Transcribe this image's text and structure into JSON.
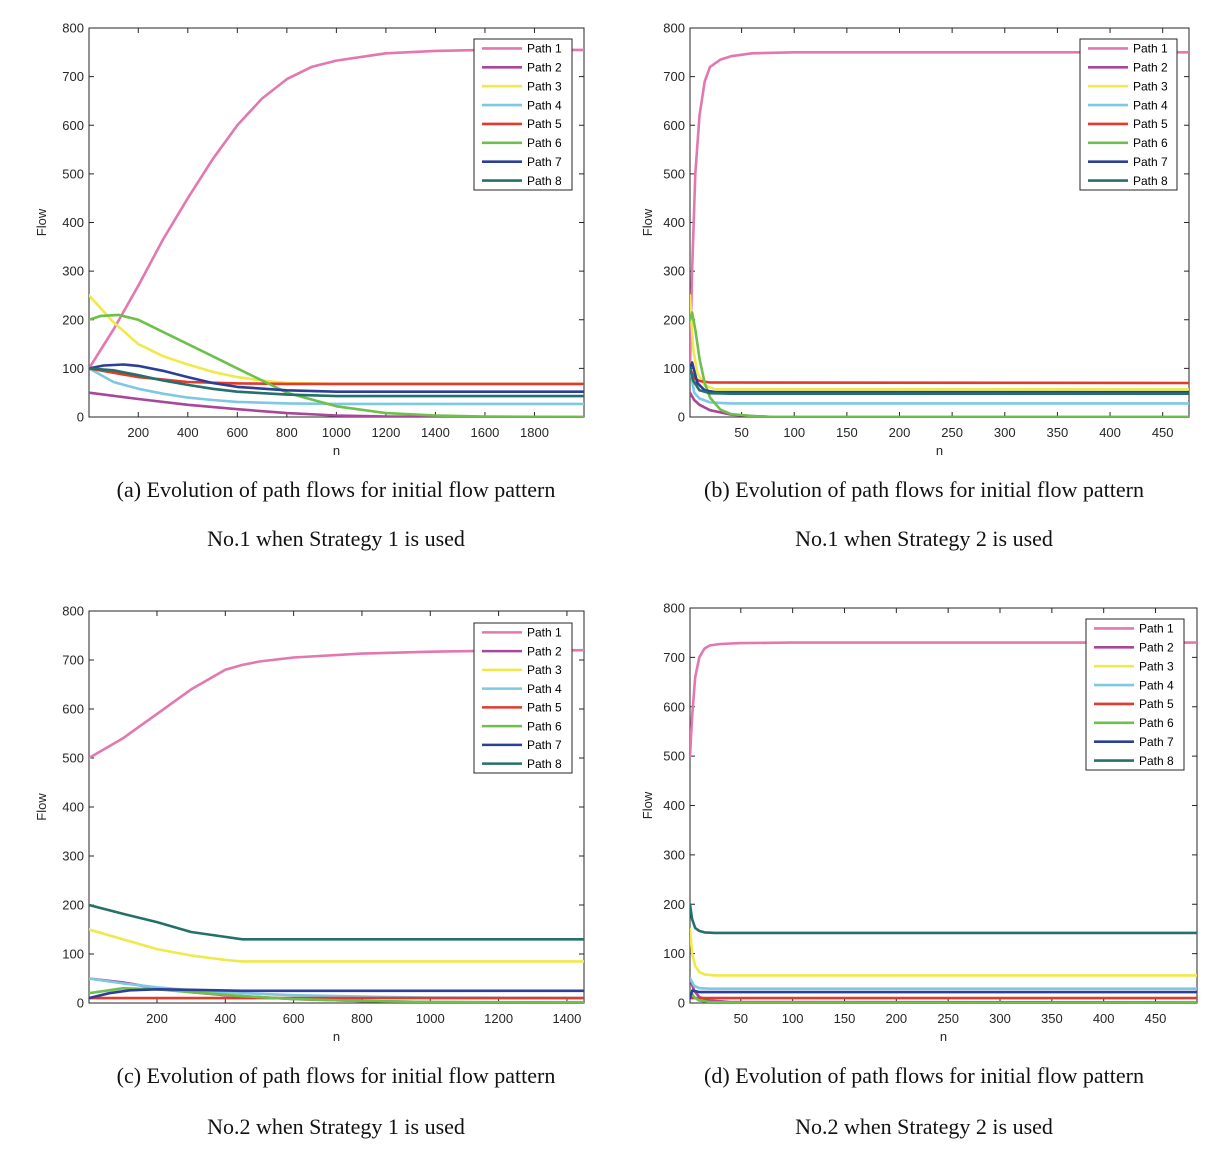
{
  "chart_data": [
    {
      "type": "line",
      "panel": "a",
      "xlabel": "n",
      "ylabel": "Flow",
      "xlim": [
        1,
        2000
      ],
      "ylim": [
        0,
        800
      ],
      "xticks": [
        200,
        400,
        600,
        800,
        1000,
        1200,
        1400,
        1600,
        1800
      ],
      "yticks": [
        0,
        100,
        200,
        300,
        400,
        500,
        600,
        700,
        800
      ],
      "caption": [
        "(a) Evolution of path flows for initial flow pattern",
        "No.1 when Strategy 1 is used"
      ],
      "series": [
        {
          "name": "Path 1",
          "color": "#e377b0",
          "x": [
            1,
            100,
            200,
            300,
            400,
            500,
            600,
            700,
            800,
            900,
            1000,
            1200,
            1400,
            1600,
            2000
          ],
          "y": [
            100,
            180,
            270,
            365,
            450,
            530,
            600,
            655,
            695,
            720,
            733,
            748,
            753,
            755,
            755
          ]
        },
        {
          "name": "Path 2",
          "color": "#a8479a",
          "x": [
            1,
            200,
            400,
            600,
            800,
            1000,
            1200,
            1600,
            2000
          ],
          "y": [
            50,
            37,
            25,
            16,
            8,
            3,
            1,
            0,
            0
          ]
        },
        {
          "name": "Path 3",
          "color": "#f0e94a",
          "x": [
            1,
            100,
            200,
            300,
            400,
            500,
            600,
            700,
            800,
            1000,
            2000
          ],
          "y": [
            250,
            195,
            150,
            125,
            108,
            93,
            82,
            75,
            70,
            68,
            68
          ]
        },
        {
          "name": "Path 4",
          "color": "#7ec8e3",
          "x": [
            1,
            100,
            200,
            300,
            400,
            500,
            600,
            800,
            1000,
            2000
          ],
          "y": [
            100,
            72,
            58,
            48,
            40,
            35,
            31,
            28,
            27,
            27
          ]
        },
        {
          "name": "Path 5",
          "color": "#e23a2c",
          "x": [
            1,
            200,
            400,
            600,
            800,
            1000,
            2000
          ],
          "y": [
            100,
            82,
            72,
            69,
            68,
            68,
            68
          ]
        },
        {
          "name": "Path 6",
          "color": "#6fbf4b",
          "x": [
            1,
            50,
            120,
            200,
            300,
            400,
            500,
            600,
            700,
            800,
            1000,
            1200,
            1400,
            1600,
            2000
          ],
          "y": [
            200,
            208,
            210,
            200,
            175,
            150,
            125,
            100,
            75,
            50,
            22,
            8,
            3,
            1,
            0
          ]
        },
        {
          "name": "Path 7",
          "color": "#2b3f99",
          "x": [
            1,
            60,
            140,
            200,
            300,
            400,
            500,
            600,
            800,
            1000,
            2000
          ],
          "y": [
            100,
            106,
            108,
            105,
            95,
            82,
            70,
            62,
            55,
            52,
            52
          ]
        },
        {
          "name": "Path 8",
          "color": "#25706a",
          "x": [
            1,
            100,
            200,
            300,
            400,
            500,
            600,
            800,
            1000,
            2000
          ],
          "y": [
            100,
            96,
            86,
            75,
            66,
            58,
            52,
            46,
            43,
            43
          ]
        }
      ]
    },
    {
      "type": "line",
      "panel": "b",
      "xlabel": "n",
      "ylabel": "Flow",
      "xlim": [
        1,
        475
      ],
      "ylim": [
        0,
        800
      ],
      "xticks": [
        50,
        100,
        150,
        200,
        250,
        300,
        350,
        400,
        450
      ],
      "yticks": [
        0,
        100,
        200,
        300,
        400,
        500,
        600,
        700,
        800
      ],
      "caption": [
        "(b) Evolution of path flows for initial flow pattern",
        "No.1 when Strategy 2 is used"
      ],
      "series": [
        {
          "name": "Path 1",
          "color": "#e377b0",
          "x": [
            1,
            3,
            6,
            10,
            15,
            20,
            30,
            40,
            60,
            100,
            475
          ],
          "y": [
            100,
            300,
            500,
            620,
            690,
            720,
            735,
            742,
            748,
            750,
            750
          ]
        },
        {
          "name": "Path 2",
          "color": "#a8479a",
          "x": [
            1,
            5,
            10,
            20,
            40,
            60,
            80,
            475
          ],
          "y": [
            50,
            35,
            25,
            14,
            5,
            2,
            0,
            0
          ]
        },
        {
          "name": "Path 3",
          "color": "#f0e94a",
          "x": [
            1,
            4,
            8,
            15,
            25,
            475
          ],
          "y": [
            250,
            140,
            90,
            65,
            57,
            57
          ]
        },
        {
          "name": "Path 4",
          "color": "#7ec8e3",
          "x": [
            1,
            5,
            10,
            20,
            40,
            475
          ],
          "y": [
            100,
            50,
            38,
            30,
            28,
            28
          ]
        },
        {
          "name": "Path 5",
          "color": "#e23a2c",
          "x": [
            1,
            5,
            10,
            20,
            475
          ],
          "y": [
            100,
            80,
            74,
            71,
            70
          ]
        },
        {
          "name": "Path 6",
          "color": "#6fbf4b",
          "x": [
            1,
            3,
            6,
            10,
            15,
            20,
            30,
            40,
            60,
            80,
            475
          ],
          "y": [
            200,
            215,
            180,
            120,
            70,
            40,
            15,
            6,
            2,
            0,
            0
          ]
        },
        {
          "name": "Path 7",
          "color": "#2b3f99",
          "x": [
            1,
            3,
            8,
            15,
            25,
            475
          ],
          "y": [
            100,
            112,
            70,
            55,
            51,
            51
          ]
        },
        {
          "name": "Path 8",
          "color": "#25706a",
          "x": [
            1,
            4,
            10,
            20,
            40,
            475
          ],
          "y": [
            100,
            75,
            55,
            49,
            48,
            48
          ]
        }
      ]
    },
    {
      "type": "line",
      "panel": "c",
      "xlabel": "n",
      "ylabel": "Flow",
      "xlim": [
        1,
        1450
      ],
      "ylim": [
        0,
        800
      ],
      "xticks": [
        200,
        400,
        600,
        800,
        1000,
        1200,
        1400
      ],
      "yticks": [
        0,
        100,
        200,
        300,
        400,
        500,
        600,
        700,
        800
      ],
      "caption": [
        "(c) Evolution of path flows for initial flow pattern",
        "No.2 when Strategy 1 is used"
      ],
      "series": [
        {
          "name": "Path 1",
          "color": "#e377b0",
          "x": [
            1,
            100,
            200,
            300,
            400,
            450,
            500,
            600,
            800,
            1000,
            1200,
            1450
          ],
          "y": [
            500,
            540,
            590,
            640,
            680,
            690,
            697,
            705,
            713,
            717,
            719,
            720
          ]
        },
        {
          "name": "Path 2",
          "color": "#a8479a",
          "x": [
            1,
            100,
            200,
            300,
            400,
            600,
            800,
            1000,
            1450
          ],
          "y": [
            50,
            42,
            30,
            22,
            16,
            8,
            4,
            2,
            1
          ]
        },
        {
          "name": "Path 3",
          "color": "#f0e94a",
          "x": [
            1,
            100,
            200,
            300,
            400,
            450,
            600,
            1000,
            1450
          ],
          "y": [
            150,
            130,
            110,
            97,
            88,
            85,
            85,
            85,
            85
          ]
        },
        {
          "name": "Path 4",
          "color": "#7ec8e3",
          "x": [
            1,
            100,
            200,
            300,
            450,
            600,
            800,
            1000,
            1450
          ],
          "y": [
            50,
            40,
            32,
            26,
            20,
            16,
            13,
            11,
            10
          ]
        },
        {
          "name": "Path 5",
          "color": "#e23a2c",
          "x": [
            1,
            200,
            400,
            600,
            1000,
            1450
          ],
          "y": [
            10,
            10,
            10,
            10,
            10,
            10
          ]
        },
        {
          "name": "Path 6",
          "color": "#6fbf4b",
          "x": [
            1,
            100,
            200,
            300,
            450,
            600,
            800,
            1000,
            1450
          ],
          "y": [
            20,
            30,
            28,
            22,
            14,
            8,
            4,
            2,
            1
          ]
        },
        {
          "name": "Path 7",
          "color": "#2b3f99",
          "x": [
            1,
            60,
            120,
            200,
            300,
            450,
            600,
            1000,
            1450
          ],
          "y": [
            10,
            20,
            26,
            28,
            27,
            25,
            25,
            25,
            25
          ]
        },
        {
          "name": "Path 8",
          "color": "#25706a",
          "x": [
            1,
            100,
            200,
            300,
            400,
            450,
            600,
            1000,
            1450
          ],
          "y": [
            200,
            182,
            165,
            145,
            135,
            130,
            130,
            130,
            130
          ]
        }
      ]
    },
    {
      "type": "line",
      "panel": "d",
      "xlabel": "n",
      "ylabel": "Flow",
      "xlim": [
        1,
        490
      ],
      "ylim": [
        0,
        800
      ],
      "xticks": [
        50,
        100,
        150,
        200,
        250,
        300,
        350,
        400,
        450
      ],
      "yticks": [
        0,
        100,
        200,
        300,
        400,
        500,
        600,
        700,
        800
      ],
      "caption": [
        "(d) Evolution of path flows for initial flow pattern",
        "No.2 when Strategy 2 is used"
      ],
      "series": [
        {
          "name": "Path 1",
          "color": "#e377b0",
          "x": [
            1,
            3,
            6,
            10,
            15,
            20,
            30,
            50,
            100,
            490
          ],
          "y": [
            500,
            580,
            660,
            700,
            718,
            724,
            727,
            729,
            730,
            730
          ]
        },
        {
          "name": "Path 2",
          "color": "#a8479a",
          "x": [
            1,
            5,
            10,
            20,
            40,
            490
          ],
          "y": [
            50,
            25,
            12,
            5,
            2,
            1
          ]
        },
        {
          "name": "Path 3",
          "color": "#f0e94a",
          "x": [
            1,
            3,
            6,
            10,
            15,
            25,
            490
          ],
          "y": [
            150,
            100,
            75,
            63,
            58,
            56,
            56
          ]
        },
        {
          "name": "Path 4",
          "color": "#7ec8e3",
          "x": [
            1,
            5,
            10,
            20,
            490
          ],
          "y": [
            50,
            35,
            30,
            29,
            29
          ]
        },
        {
          "name": "Path 5",
          "color": "#e23a2c",
          "x": [
            1,
            100,
            490
          ],
          "y": [
            10,
            10,
            10
          ]
        },
        {
          "name": "Path 6",
          "color": "#6fbf4b",
          "x": [
            1,
            5,
            10,
            20,
            40,
            490
          ],
          "y": [
            25,
            12,
            5,
            2,
            1,
            0
          ]
        },
        {
          "name": "Path 7",
          "color": "#2b3f99",
          "x": [
            1,
            3,
            6,
            10,
            20,
            490
          ],
          "y": [
            10,
            25,
            24,
            22,
            22,
            22
          ]
        },
        {
          "name": "Path 8",
          "color": "#25706a",
          "x": [
            1,
            3,
            6,
            10,
            15,
            25,
            490
          ],
          "y": [
            200,
            170,
            152,
            146,
            143,
            142,
            142
          ]
        }
      ]
    }
  ]
}
